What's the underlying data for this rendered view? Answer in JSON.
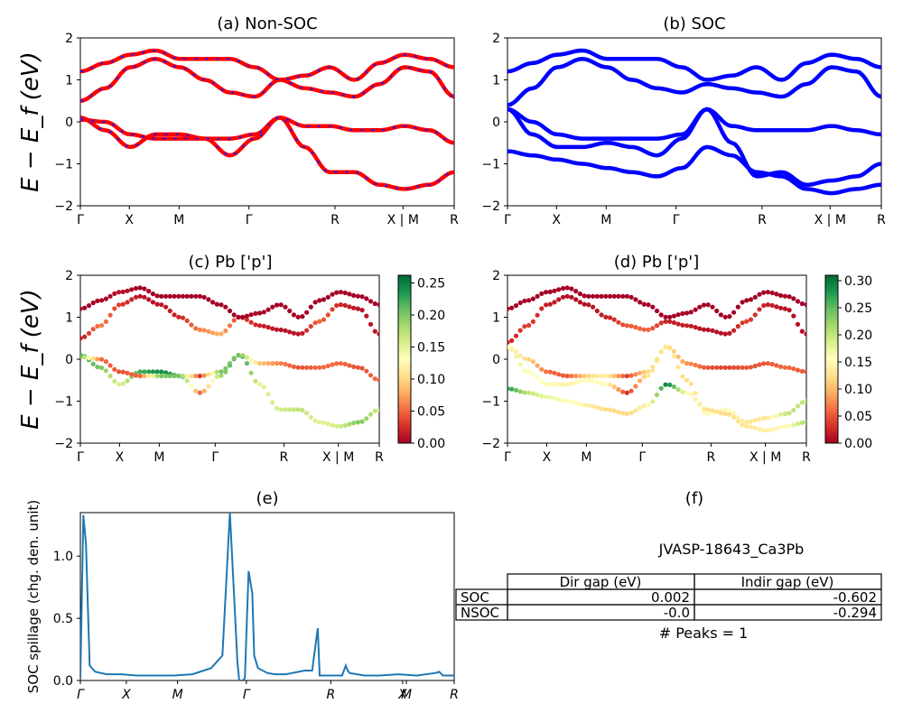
{
  "chart_data": [
    {
      "type": "line",
      "title": "(a) Non-SOC",
      "ylabel": "E − E_f (eV)",
      "ylim": [
        -2,
        2
      ],
      "yticks": [
        "2",
        "1",
        "0",
        "−1",
        "−2"
      ],
      "kpath_labels": [
        "Γ",
        "X",
        "M",
        "Γ",
        "R",
        "X | M",
        "R"
      ],
      "series": [
        {
          "values": [
            0.1,
            -0.2,
            -0.6,
            -0.3,
            -0.3,
            -0.4,
            -0.8,
            -0.4,
            0.1,
            -0.6,
            -1.2,
            -1.2,
            -1.5,
            -1.6,
            -1.5,
            -1.2
          ]
        },
        {
          "values": [
            0.05,
            0.0,
            -0.3,
            -0.4,
            -0.4,
            -0.4,
            -0.4,
            -0.3,
            0.1,
            -0.1,
            -0.1,
            -0.2,
            -0.2,
            -0.1,
            -0.2,
            -0.5
          ]
        },
        {
          "values": [
            0.5,
            0.8,
            1.3,
            1.5,
            1.3,
            1.0,
            0.7,
            0.6,
            1.0,
            0.8,
            0.7,
            0.6,
            0.9,
            1.3,
            1.2,
            0.6
          ]
        },
        {
          "values": [
            1.2,
            1.4,
            1.6,
            1.7,
            1.5,
            1.5,
            1.5,
            1.3,
            1.0,
            1.1,
            1.3,
            1.0,
            1.4,
            1.6,
            1.5,
            1.3
          ]
        }
      ]
    },
    {
      "type": "line",
      "title": "(b) SOC",
      "ylim": [
        -2,
        2
      ],
      "yticks": [
        "2",
        "1",
        "0",
        "−1",
        "−2"
      ],
      "kpath_labels": [
        "Γ",
        "X",
        "M",
        "Γ",
        "R",
        "X | M",
        "R"
      ],
      "series": [
        {
          "values": [
            0.3,
            -0.3,
            -0.6,
            -0.6,
            -0.5,
            -0.6,
            -0.8,
            -0.4,
            0.3,
            -0.5,
            -1.3,
            -1.2,
            -1.5,
            -1.4,
            -1.3,
            -1.0
          ]
        },
        {
          "values": [
            0.3,
            0.0,
            -0.3,
            -0.4,
            -0.4,
            -0.4,
            -0.4,
            -0.3,
            0.3,
            -0.1,
            -0.2,
            -0.2,
            -0.2,
            -0.1,
            -0.2,
            -0.3
          ]
        },
        {
          "values": [
            -0.7,
            -0.8,
            -0.9,
            -1.0,
            -1.1,
            -1.2,
            -1.3,
            -1.1,
            -0.6,
            -0.8,
            -1.2,
            -1.3,
            -1.6,
            -1.7,
            -1.6,
            -1.5
          ]
        },
        {
          "values": [
            0.4,
            0.8,
            1.3,
            1.5,
            1.3,
            1.0,
            0.8,
            0.7,
            0.9,
            0.8,
            0.7,
            0.6,
            0.9,
            1.3,
            1.2,
            0.6
          ]
        },
        {
          "values": [
            1.2,
            1.4,
            1.6,
            1.7,
            1.5,
            1.5,
            1.5,
            1.3,
            1.0,
            1.1,
            1.3,
            1.0,
            1.4,
            1.6,
            1.5,
            1.3
          ]
        }
      ]
    },
    {
      "type": "scatter",
      "title": "(c)  Pb ['p']",
      "ylabel": "E − E_f (eV)",
      "ylim": [
        -2,
        2
      ],
      "yticks": [
        "2",
        "1",
        "0",
        "−1",
        "−2"
      ],
      "kpath_labels": [
        "Γ",
        "X",
        "M",
        "Γ",
        "R",
        "X | M",
        "R"
      ],
      "colorbar_ticks": [
        "0.25",
        "0.20",
        "0.15",
        "0.10",
        "0.05",
        "0.00"
      ],
      "series": [
        {
          "values": [
            0.1,
            -0.2,
            -0.6,
            -0.3,
            -0.3,
            -0.4,
            -0.8,
            -0.4,
            0.1,
            -0.6,
            -1.2,
            -1.2,
            -1.5,
            -1.6,
            -1.5,
            -1.2
          ],
          "weights": [
            0.22,
            0.2,
            0.15,
            0.22,
            0.24,
            0.23,
            0.05,
            0.18,
            0.24,
            0.15,
            0.16,
            0.17,
            0.15,
            0.16,
            0.2,
            0.16
          ]
        },
        {
          "values": [
            0.05,
            0.0,
            -0.3,
            -0.4,
            -0.4,
            -0.4,
            -0.4,
            -0.3,
            0.1,
            -0.1,
            -0.1,
            -0.2,
            -0.2,
            -0.1,
            -0.2,
            -0.5
          ],
          "weights": [
            0.2,
            0.05,
            0.04,
            0.05,
            0.2,
            0.2,
            0.03,
            0.2,
            0.2,
            0.09,
            0.06,
            0.04,
            0.05,
            0.05,
            0.04,
            0.05
          ]
        },
        {
          "values": [
            0.5,
            0.8,
            1.3,
            1.5,
            1.3,
            1.0,
            0.7,
            0.6,
            1.0,
            0.8,
            0.7,
            0.6,
            0.9,
            1.3,
            1.2,
            0.6
          ],
          "weights": [
            0.01,
            0.06,
            0.03,
            0.01,
            0.01,
            0.02,
            0.06,
            0.08,
            0.03,
            0.02,
            0.01,
            0.01,
            0.05,
            0.02,
            0.01,
            0.01
          ]
        },
        {
          "values": [
            1.2,
            1.4,
            1.6,
            1.7,
            1.5,
            1.5,
            1.5,
            1.3,
            1.0,
            1.1,
            1.3,
            1.0,
            1.4,
            1.6,
            1.5,
            1.3
          ],
          "weights": [
            0.0,
            0.0,
            0.01,
            0.0,
            0.0,
            0.0,
            0.0,
            0.0,
            0.0,
            0.0,
            0.0,
            0.0,
            0.0,
            0.0,
            0.0,
            0.0
          ]
        }
      ]
    },
    {
      "type": "scatter",
      "title": "(d) Pb ['p']",
      "ylim": [
        -2,
        2
      ],
      "yticks": [
        "2",
        "1",
        "0",
        "−1",
        "−2"
      ],
      "kpath_labels": [
        "Γ",
        "X",
        "M",
        "Γ",
        "R",
        "X | M",
        "R"
      ],
      "colorbar_ticks": [
        "0.30",
        "0.25",
        "0.20",
        "0.15",
        "0.10",
        "0.05",
        "0.00"
      ],
      "series": [
        {
          "values": [
            0.3,
            -0.3,
            -0.6,
            -0.6,
            -0.5,
            -0.6,
            -0.8,
            -0.4,
            0.3,
            -0.5,
            -1.3,
            -1.2,
            -1.5,
            -1.4,
            -1.3,
            -1.0
          ],
          "weights": [
            0.18,
            0.16,
            0.15,
            0.14,
            0.16,
            0.15,
            0.03,
            0.13,
            0.14,
            0.12,
            0.15,
            0.16,
            0.13,
            0.13,
            0.2,
            0.2
          ]
        },
        {
          "values": [
            0.3,
            0.0,
            -0.3,
            -0.4,
            -0.4,
            -0.4,
            -0.4,
            -0.3,
            0.3,
            -0.1,
            -0.2,
            -0.2,
            -0.2,
            -0.1,
            -0.2,
            -0.3
          ],
          "weights": [
            0.15,
            0.12,
            0.06,
            0.05,
            0.12,
            0.14,
            0.04,
            0.12,
            0.13,
            0.08,
            0.05,
            0.04,
            0.05,
            0.05,
            0.06,
            0.05
          ]
        },
        {
          "values": [
            -0.7,
            -0.8,
            -0.9,
            -1.0,
            -1.1,
            -1.2,
            -1.3,
            -1.1,
            -0.6,
            -0.8,
            -1.2,
            -1.3,
            -1.6,
            -1.7,
            -1.6,
            -1.5
          ],
          "weights": [
            0.28,
            0.2,
            0.17,
            0.16,
            0.14,
            0.12,
            0.12,
            0.14,
            0.3,
            0.15,
            0.13,
            0.12,
            0.13,
            0.14,
            0.15,
            0.22
          ]
        },
        {
          "values": [
            0.4,
            0.8,
            1.3,
            1.5,
            1.3,
            1.0,
            0.8,
            0.7,
            0.9,
            0.8,
            0.7,
            0.6,
            0.9,
            1.3,
            1.2,
            0.6
          ],
          "weights": [
            0.02,
            0.04,
            0.02,
            0.01,
            0.01,
            0.02,
            0.05,
            0.06,
            0.02,
            0.02,
            0.01,
            0.01,
            0.04,
            0.02,
            0.01,
            0.01
          ]
        },
        {
          "values": [
            1.2,
            1.4,
            1.6,
            1.7,
            1.5,
            1.5,
            1.5,
            1.3,
            1.0,
            1.1,
            1.3,
            1.0,
            1.4,
            1.6,
            1.5,
            1.3
          ],
          "weights": [
            0.0,
            0.0,
            0.0,
            0.0,
            0.0,
            0.0,
            0.0,
            0.0,
            0.0,
            0.0,
            0.0,
            0.0,
            0.0,
            0.0,
            0.0,
            0.0
          ]
        }
      ]
    },
    {
      "type": "line",
      "title": "(e)",
      "ylabel": "SOC spillage (chg. den. unit)",
      "ylim": [
        0,
        1.35
      ],
      "yticks": [
        "1.0",
        "0.5",
        "0.0"
      ],
      "kpath_labels": [
        "Γ",
        "X",
        "M",
        "Γ",
        "R",
        "X",
        "M",
        "R"
      ],
      "x": [
        0,
        0.008,
        0.015,
        0.025,
        0.04,
        0.07,
        0.11,
        0.15,
        0.2,
        0.25,
        0.3,
        0.35,
        0.38,
        0.4,
        0.42,
        0.425,
        0.435,
        0.44,
        0.45,
        0.46,
        0.465,
        0.475,
        0.5,
        0.52,
        0.55,
        0.6,
        0.62,
        0.635,
        0.64,
        0.65,
        0.66,
        0.68,
        0.7,
        0.71,
        0.715,
        0.72,
        0.74,
        0.76,
        0.8,
        0.85,
        0.9,
        0.95,
        0.96,
        0.97,
        1.0
      ],
      "values": [
        0.02,
        1.33,
        1.1,
        0.12,
        0.07,
        0.05,
        0.05,
        0.04,
        0.04,
        0.04,
        0.05,
        0.1,
        0.2,
        1.35,
        0.15,
        0.0,
        0.0,
        0.02,
        0.88,
        0.7,
        0.2,
        0.1,
        0.06,
        0.05,
        0.05,
        0.08,
        0.08,
        0.42,
        0.04,
        0.04,
        0.04,
        0.04,
        0.04,
        0.12,
        0.08,
        0.06,
        0.05,
        0.04,
        0.04,
        0.05,
        0.04,
        0.06,
        0.07,
        0.04,
        0.04
      ],
      "color": "#1f77b4"
    }
  ],
  "panel_f": {
    "title": "(f)",
    "subtitle": "JVASP-18643_Ca3Pb",
    "col_headers": [
      "Dir gap (eV)",
      "Indir gap (eV)"
    ],
    "rows": [
      {
        "label": "SOC",
        "dir": "0.002",
        "indir": "-0.602"
      },
      {
        "label": "NSOC",
        "dir": "-0.0",
        "indir": "-0.294"
      }
    ],
    "peaks": "# Peaks = 1"
  },
  "colors": {
    "nonsoc_line": "#ff0000",
    "nonsoc_dash": "#1a1aff",
    "soc_line": "#0000ff",
    "spillage": "#1f77b4",
    "colormap": [
      "#a50026",
      "#d73027",
      "#f46d43",
      "#fdae61",
      "#fee08b",
      "#ffffbf",
      "#d9ef8b",
      "#a6d96a",
      "#66bd63",
      "#1a9850",
      "#006837"
    ]
  }
}
